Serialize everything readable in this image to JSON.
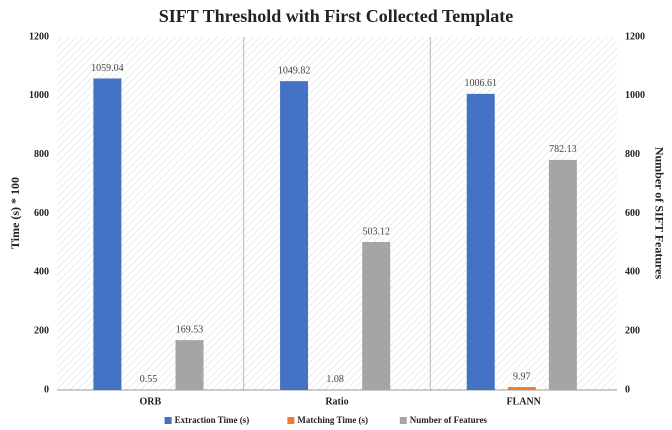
{
  "chart_data": {
    "type": "bar",
    "title": "SIFT Threshold with First Collected Template",
    "ylabel": "Time (s) * 100",
    "y2label": "Number of SIFT Features",
    "categories": [
      "ORB",
      "Ratio",
      "FLANN"
    ],
    "series": [
      {
        "name": "Extraction Time (s)",
        "color": "#4472c4",
        "values": [
          1059.04,
          1049.82,
          1006.61
        ]
      },
      {
        "name": "Matching Time (s)",
        "color": "#ed7d31",
        "values": [
          0.55,
          1.08,
          9.97
        ]
      },
      {
        "name": "Number of Features",
        "color": "#a5a5a5",
        "axis": "y2",
        "values": [
          169.53,
          503.12,
          782.13
        ]
      }
    ],
    "ylim": [
      0,
      1200
    ],
    "yticks": [
      0,
      200,
      400,
      600,
      800,
      1000,
      1200
    ],
    "y2lim": [
      0,
      1200
    ],
    "y2ticks": [
      0,
      200,
      400,
      600,
      800,
      1000,
      1200
    ],
    "grid": false,
    "legend": "bottom"
  }
}
